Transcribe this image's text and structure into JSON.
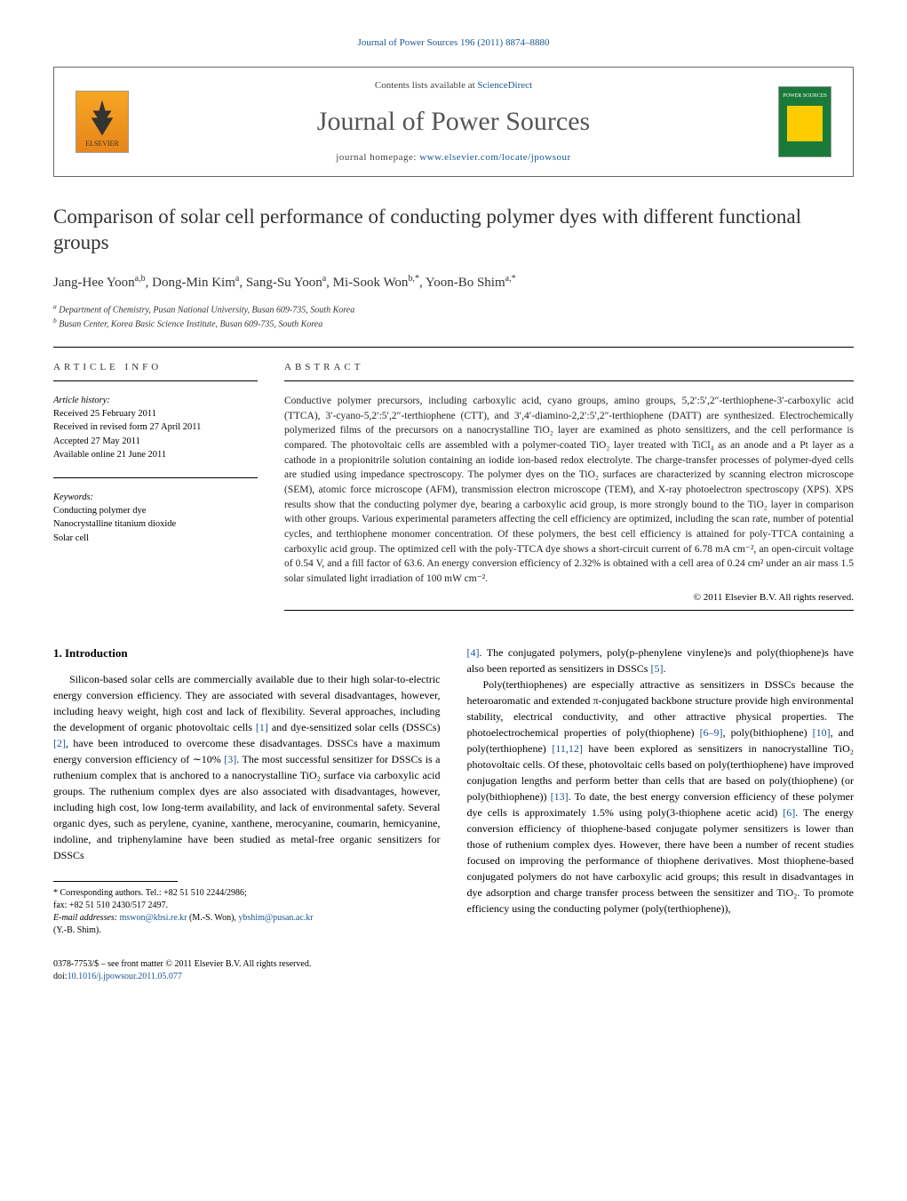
{
  "journal_ref": "Journal of Power Sources 196 (2011) 8874–8880",
  "banner": {
    "contents_prefix": "Contents lists available at ",
    "contents_link": "ScienceDirect",
    "journal_title": "Journal of Power Sources",
    "homepage_prefix": "journal homepage: ",
    "homepage_url": "www.elsevier.com/locate/jpowsour",
    "elsevier_label": "ELSEVIER",
    "cover_label": "POWER SOURCES"
  },
  "article": {
    "title": "Comparison of solar cell performance of conducting polymer dyes with different functional groups",
    "authors_html": "Jang-Hee Yoon<sup>a,b</sup>, Dong-Min Kim<sup>a</sup>, Sang-Su Yoon<sup>a</sup>, Mi-Sook Won<sup>b,*</sup>, Yoon-Bo Shim<sup>a,*</sup>",
    "affiliations": [
      "a Department of Chemistry, Pusan National University, Busan 609-735, South Korea",
      "b Busan Center, Korea Basic Science Institute, Busan 609-735, South Korea"
    ]
  },
  "info": {
    "heading": "ARTICLE INFO",
    "history_label": "Article history:",
    "history": [
      "Received 25 February 2011",
      "Received in revised form 27 April 2011",
      "Accepted 27 May 2011",
      "Available online 21 June 2011"
    ],
    "keywords_label": "Keywords:",
    "keywords": [
      "Conducting polymer dye",
      "Nanocrystalline titanium dioxide",
      "Solar cell"
    ]
  },
  "abstract": {
    "heading": "ABSTRACT",
    "text": "Conductive polymer precursors, including carboxylic acid, cyano groups, amino groups, 5,2′:5′,2″-terthiophene-3′-carboxylic acid (TTCA), 3′-cyano-5,2′:5′,2″-terthiophene (CTT), and 3′,4′-diamino-2,2′:5′,2″-terthiophene (DATT) are synthesized. Electrochemically polymerized films of the precursors on a nanocrystalline TiO₂ layer are examined as photo sensitizers, and the cell performance is compared. The photovoltaic cells are assembled with a polymer-coated TiO₂ layer treated with TiCl₄ as an anode and a Pt layer as a cathode in a propionitrile solution containing an iodide ion-based redox electrolyte. The charge-transfer processes of polymer-dyed cells are studied using impedance spectroscopy. The polymer dyes on the TiO₂ surfaces are characterized by scanning electron microscope (SEM), atomic force microscope (AFM), transmission electron microscope (TEM), and X-ray photoelectron spectroscopy (XPS). XPS results show that the conducting polymer dye, bearing a carboxylic acid group, is more strongly bound to the TiO₂ layer in comparison with other groups. Various experimental parameters affecting the cell efficiency are optimized, including the scan rate, number of potential cycles, and terthiophene monomer concentration. Of these polymers, the best cell efficiency is attained for poly-TTCA containing a carboxylic acid group. The optimized cell with the poly-TTCA dye shows a short-circuit current of 6.78 mA cm⁻², an open-circuit voltage of 0.54 V, and a fill factor of 63.6. An energy conversion efficiency of 2.32% is obtained with a cell area of 0.24 cm² under an air mass 1.5 solar simulated light irradiation of 100 mW cm⁻².",
    "copyright": "© 2011 Elsevier B.V. All rights reserved."
  },
  "body": {
    "section_heading": "1. Introduction",
    "col1_p1": "Silicon-based solar cells are commercially available due to their high solar-to-electric energy conversion efficiency. They are associated with several disadvantages, however, including heavy weight, high cost and lack of flexibility. Several approaches, including the development of organic photovoltaic cells [1] and dye-sensitized solar cells (DSSCs) [2], have been introduced to overcome these disadvantages. DSSCs have a maximum energy conversion efficiency of ∼10% [3]. The most successful sensitizer for DSSCs is a ruthenium complex that is anchored to a nanocrystalline TiO₂ surface via carboxylic acid groups. The ruthenium complex dyes are also associated with disadvantages, however, including high cost, low long-term availability, and lack of environmental safety. Several organic dyes, such as perylene, cyanine, xanthene, merocyanine, coumarin, hemicyanine, indoline, and triphenylamine have been studied as metal-free organic sensitizers for DSSCs",
    "col2_p1": "[4]. The conjugated polymers, poly(p-phenylene vinylene)s and poly(thiophene)s have also been reported as sensitizers in DSSCs [5].",
    "col2_p2": "Poly(terthiophenes) are especially attractive as sensitizers in DSSCs because the heteroaromatic and extended π-conjugated backbone structure provide high environmental stability, electrical conductivity, and other attractive physical properties. The photoelectrochemical properties of poly(thiophene) [6–9], poly(bithiophene) [10], and poly(terthiophene) [11,12] have been explored as sensitizers in nanocrystalline TiO₂ photovoltaic cells. Of these, photovoltaic cells based on poly(terthiophene) have improved conjugation lengths and perform better than cells that are based on poly(thiophene) (or poly(bithiophene)) [13]. To date, the best energy conversion efficiency of these polymer dye cells is approximately 1.5% using poly(3-thiophene acetic acid) [6]. The energy conversion efficiency of thiophene-based conjugate polymer sensitizers is lower than those of ruthenium complex dyes. However, there have been a number of recent studies focused on improving the performance of thiophene derivatives. Most thiophene-based conjugated polymers do not have carboxylic acid groups; this result in disadvantages in dye adsorption and charge transfer process between the sensitizer and TiO₂. To promote efficiency using the conducting polymer (poly(terthiophene)),"
  },
  "footnotes": {
    "corr": "* Corresponding authors. Tel.: +82 51 510 2244/2986;",
    "fax": "fax: +82 51 510 2430/517 2497.",
    "emails_label": "E-mail addresses:",
    "email1": "mswon@kbsi.re.kr",
    "email1_name": "(M.-S. Won),",
    "email2": "ybshim@pusan.ac.kr",
    "email2_name": "(Y.-B. Shim)."
  },
  "bottom": {
    "line1": "0378-7753/$ – see front matter © 2011 Elsevier B.V. All rights reserved.",
    "doi_label": "doi:",
    "doi": "10.1016/j.jpowsour.2011.05.077"
  },
  "colors": {
    "link": "#1a5490",
    "text": "#000000"
  }
}
